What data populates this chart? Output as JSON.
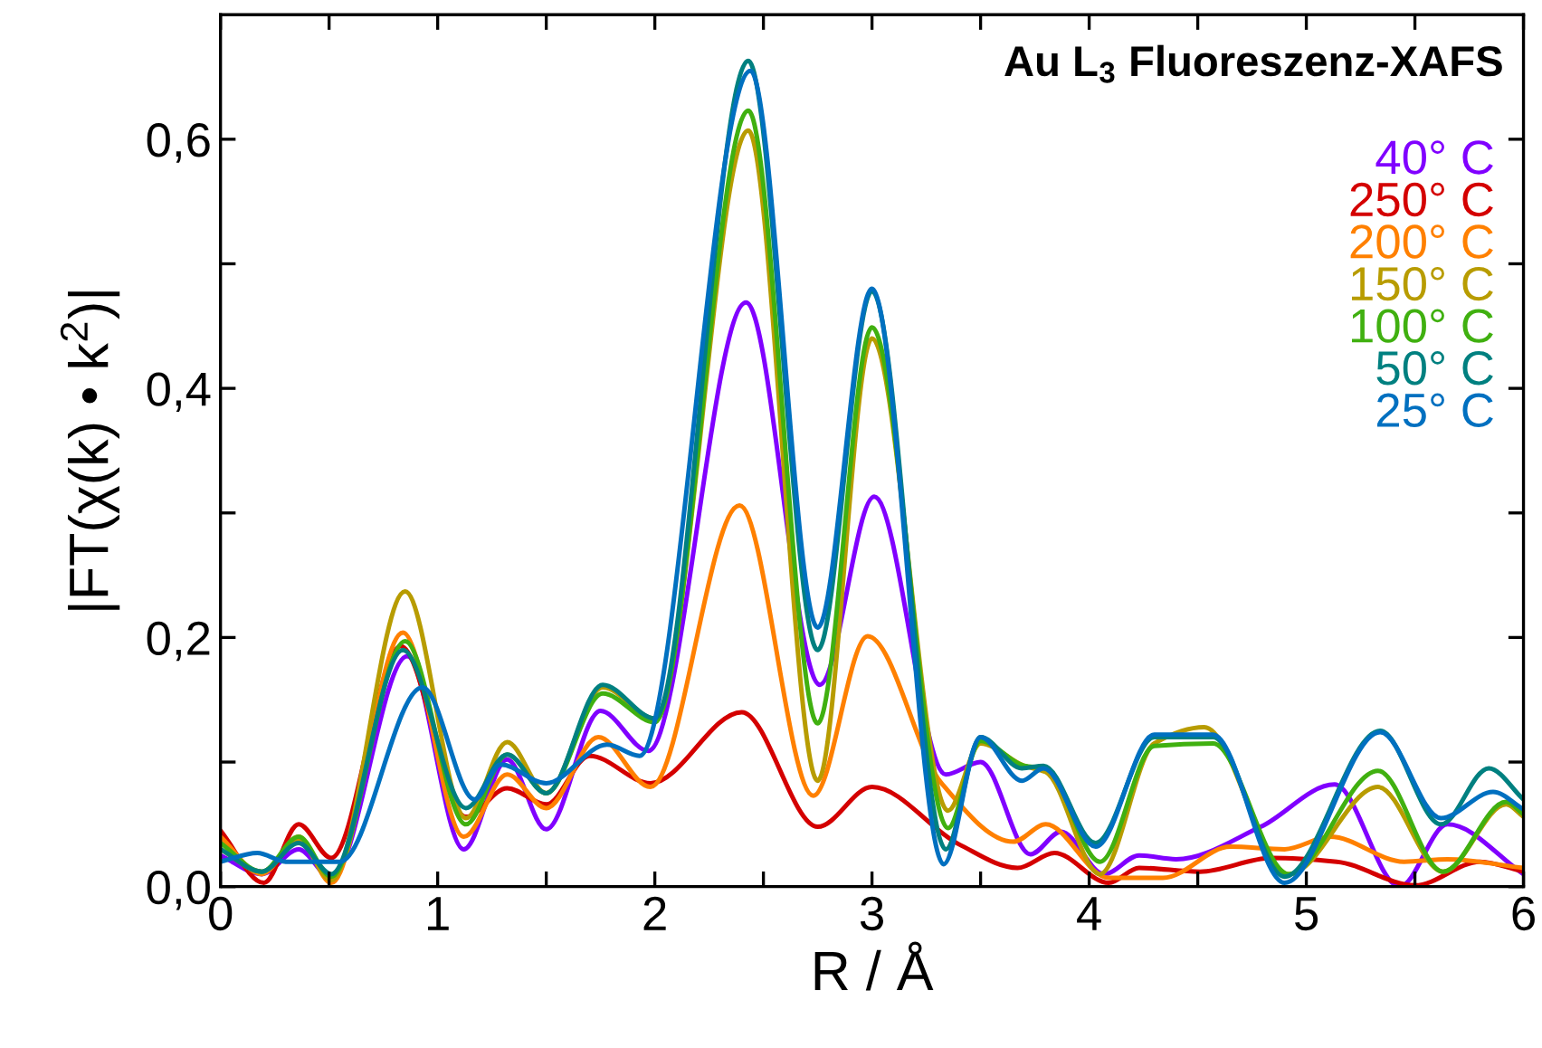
{
  "chart_data": {
    "type": "line",
    "title": "Au L$_{3}$ Fluoreszenz-XAFS",
    "xlabel": "R / Å",
    "ylabel": "|FT(χ(k) • k$^{2}$)|",
    "xlim": [
      0,
      6
    ],
    "ylim": [
      0,
      0.7
    ],
    "xticks": [
      0,
      {
        "value": 0.5,
        "label": null
      },
      1,
      {
        "value": 1.5,
        "label": null
      },
      2,
      {
        "value": 2.5,
        "label": null
      },
      3,
      {
        "value": 3.5,
        "label": null
      },
      4,
      {
        "value": 4.5,
        "label": null
      },
      5,
      {
        "value": 5.5,
        "label": null
      },
      6
    ],
    "yticks": [
      {
        "value": 0,
        "label": "0,0"
      },
      {
        "value": 0.1,
        "label": null
      },
      {
        "value": 0.2,
        "label": "0,2"
      },
      {
        "value": 0.3,
        "label": null
      },
      {
        "value": 0.4,
        "label": "0,4"
      },
      {
        "value": 0.5,
        "label": null
      },
      {
        "value": 0.6,
        "label": "0,6"
      }
    ],
    "grid": false,
    "legend": "top right",
    "marker": "none",
    "line_style": "solid",
    "series": [
      {
        "name": "40° C",
        "color": "#8000ff",
        "x": [
          0,
          0.19,
          0.36,
          0.51,
          0.86,
          1.12,
          1.32,
          1.5,
          1.75,
          1.97,
          2.42,
          2.76,
          3.01,
          3.34,
          3.5,
          3.73,
          3.87,
          4.07,
          4.23,
          4.4,
          4.79,
          5.13,
          5.43,
          5.65,
          6.0
        ],
        "values": [
          0.025,
          0.01,
          0.03,
          0.007,
          0.185,
          0.03,
          0.102,
          0.046,
          0.141,
          0.109,
          0.469,
          0.162,
          0.313,
          0.09,
          0.1,
          0.026,
          0.044,
          0.01,
          0.025,
          0.022,
          0.048,
          0.082,
          0.0,
          0.05,
          0.01
        ]
      },
      {
        "name": "250° C",
        "color": "#d40000",
        "x": [
          0,
          0.2,
          0.36,
          0.51,
          0.83,
          1.13,
          1.32,
          1.5,
          1.7,
          1.98,
          2.4,
          2.75,
          3.0,
          3.4,
          3.67,
          3.84,
          4.09,
          4.23,
          4.51,
          4.84,
          5.14,
          5.5,
          5.8,
          6.0
        ],
        "values": [
          0.045,
          0.003,
          0.05,
          0.023,
          0.193,
          0.056,
          0.079,
          0.066,
          0.105,
          0.083,
          0.14,
          0.048,
          0.08,
          0.034,
          0.015,
          0.027,
          0.003,
          0.015,
          0.012,
          0.023,
          0.02,
          0.001,
          0.02,
          0.012
        ]
      },
      {
        "name": "200° C",
        "color": "#ff8000",
        "x": [
          0,
          0.19,
          0.36,
          0.51,
          0.84,
          1.12,
          1.32,
          1.5,
          1.74,
          1.98,
          2.39,
          2.73,
          2.98,
          3.32,
          3.65,
          3.8,
          4.09,
          4.34,
          4.65,
          4.9,
          5.11,
          5.45,
          5.65,
          6.0
        ],
        "values": [
          0.04,
          0.01,
          0.04,
          0.003,
          0.204,
          0.04,
          0.09,
          0.063,
          0.12,
          0.08,
          0.306,
          0.073,
          0.201,
          0.083,
          0.036,
          0.05,
          0.007,
          0.007,
          0.032,
          0.03,
          0.04,
          0.02,
          0.022,
          0.015
        ]
      },
      {
        "name": "150° C",
        "color": "#b89c00",
        "x": [
          0,
          0.19,
          0.36,
          0.51,
          0.85,
          1.13,
          1.32,
          1.5,
          1.76,
          2.0,
          2.43,
          2.75,
          3.0,
          3.35,
          3.5,
          3.7,
          3.8,
          4.05,
          4.3,
          4.53,
          4.92,
          5.33,
          5.63,
          5.92,
          6.0
        ],
        "values": [
          0.03,
          0.012,
          0.037,
          0.005,
          0.237,
          0.055,
          0.116,
          0.075,
          0.16,
          0.135,
          0.607,
          0.085,
          0.44,
          0.061,
          0.115,
          0.097,
          0.092,
          0.01,
          0.115,
          0.128,
          0.01,
          0.08,
          0.012,
          0.066,
          0.056
        ]
      },
      {
        "name": "100° C",
        "color": "#40b010",
        "x": [
          0,
          0.19,
          0.36,
          0.51,
          0.85,
          1.13,
          1.32,
          1.5,
          1.76,
          2.0,
          2.43,
          2.75,
          3.0,
          3.35,
          3.5,
          3.7,
          3.8,
          4.05,
          4.3,
          4.57,
          4.92,
          5.33,
          5.63,
          5.92,
          6.0
        ],
        "values": [
          0.035,
          0.012,
          0.04,
          0.008,
          0.197,
          0.05,
          0.106,
          0.075,
          0.155,
          0.132,
          0.623,
          0.131,
          0.449,
          0.047,
          0.117,
          0.097,
          0.095,
          0.02,
          0.113,
          0.115,
          0.01,
          0.093,
          0.012,
          0.068,
          0.058
        ]
      },
      {
        "name": "50° C",
        "color": "#008080",
        "x": [
          0,
          0.19,
          0.36,
          0.51,
          0.84,
          1.13,
          1.32,
          1.5,
          1.76,
          2.0,
          2.43,
          2.75,
          3.0,
          3.34,
          3.5,
          3.69,
          3.79,
          4.03,
          4.3,
          4.57,
          4.9,
          5.34,
          5.62,
          5.84,
          6.0
        ],
        "values": [
          0.03,
          0.012,
          0.035,
          0.01,
          0.19,
          0.063,
          0.106,
          0.075,
          0.162,
          0.135,
          0.663,
          0.19,
          0.478,
          0.03,
          0.12,
          0.095,
          0.097,
          0.035,
          0.12,
          0.12,
          0.008,
          0.125,
          0.05,
          0.095,
          0.07
        ]
      },
      {
        "name": "25° C",
        "color": "#0070c0",
        "x": [
          0,
          0.17,
          0.3,
          0.55,
          0.93,
          1.17,
          1.29,
          1.5,
          1.78,
          1.93,
          2.44,
          2.75,
          3.0,
          3.33,
          3.5,
          3.69,
          3.79,
          4.03,
          4.3,
          4.57,
          4.9,
          5.34,
          5.62,
          5.86,
          6.0
        ],
        "values": [
          0.02,
          0.027,
          0.02,
          0.02,
          0.16,
          0.07,
          0.098,
          0.083,
          0.114,
          0.105,
          0.655,
          0.208,
          0.48,
          0.018,
          0.12,
          0.085,
          0.095,
          0.032,
          0.122,
          0.122,
          0.003,
          0.124,
          0.055,
          0.076,
          0.062
        ]
      }
    ]
  }
}
